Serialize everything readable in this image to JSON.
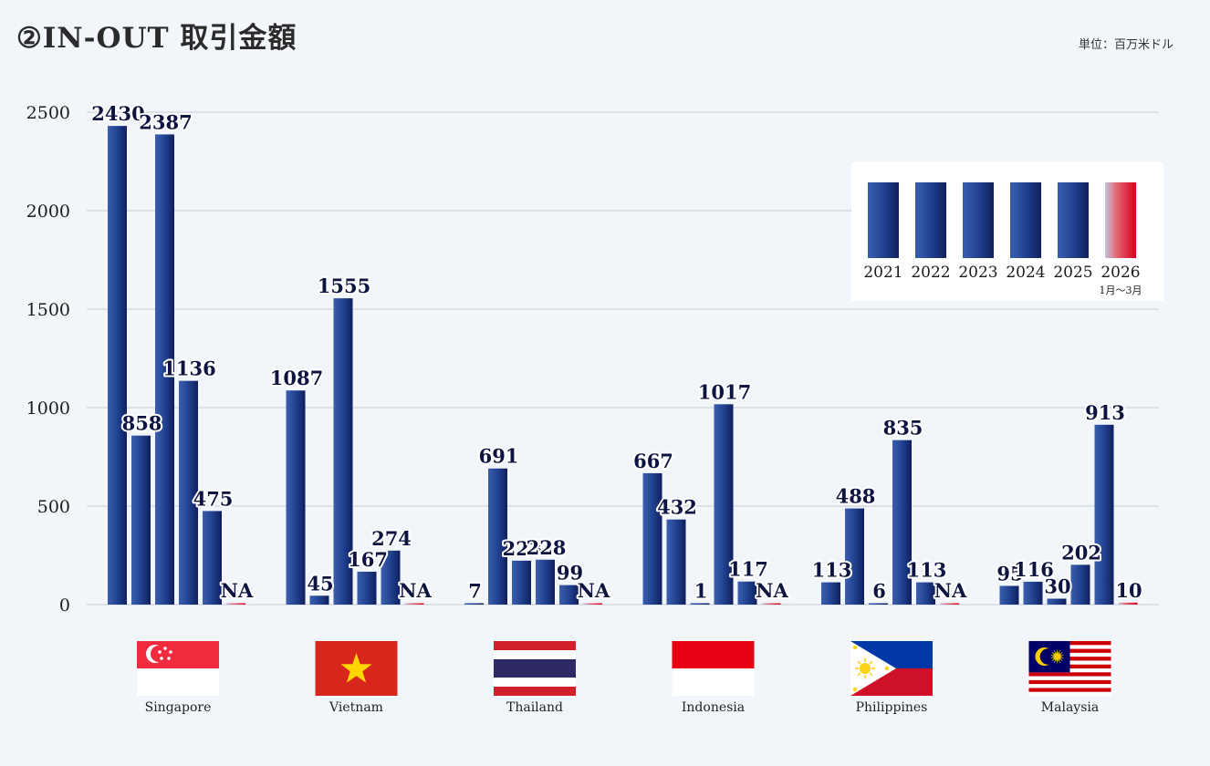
{
  "header": {
    "title": "②IN-OUT 取引金額",
    "unit": "単位：百万米ドル"
  },
  "chart_data": {
    "type": "bar",
    "title": "②IN-OUT 取引金額",
    "unit": "単位：百万米ドル",
    "ylim": [
      0,
      2500
    ],
    "yticks": [
      0,
      500,
      1000,
      1500,
      2000,
      2500
    ],
    "grid": true,
    "legend_position": "top-right",
    "categories": [
      "Singapore",
      "Vietnam",
      "Thailand",
      "Indonesia",
      "Philippines",
      "Malaysia"
    ],
    "series": [
      {
        "name": "2021",
        "values": [
          2430,
          1087,
          7,
          667,
          113,
          95
        ],
        "labels": [
          "2430",
          "1087",
          "7",
          "667",
          "113",
          "95"
        ]
      },
      {
        "name": "2022",
        "values": [
          858,
          45,
          691,
          432,
          488,
          116
        ],
        "labels": [
          "858",
          "45",
          "691",
          "432",
          "488",
          "116"
        ]
      },
      {
        "name": "2023",
        "values": [
          2387,
          1555,
          223,
          1,
          6,
          30
        ],
        "labels": [
          "2387",
          "1555",
          "223",
          "1",
          "6",
          "30"
        ]
      },
      {
        "name": "2024",
        "values": [
          1136,
          167,
          228,
          1017,
          835,
          202
        ],
        "labels": [
          "1136",
          "167",
          "228",
          "1017",
          "835",
          "202"
        ]
      },
      {
        "name": "2025",
        "values": [
          475,
          274,
          99,
          117,
          113,
          913
        ],
        "labels": [
          "475",
          "274",
          "99",
          "117",
          "113",
          "913"
        ]
      },
      {
        "name": "2026",
        "note": "1月〜3月",
        "values": [
          null,
          null,
          null,
          null,
          null,
          10
        ],
        "labels": [
          "NA",
          "NA",
          "NA",
          "NA",
          "NA",
          "10"
        ]
      }
    ]
  },
  "colors": {
    "bar_dark": "#0f1f5c",
    "bar_mid": "#1f3f8c",
    "bar_light": "#3a5fb0",
    "partial_dark": "#d9001b",
    "partial_light": "#c0c8de",
    "grid": "#c8ccd4",
    "background": "#f2f5fa"
  },
  "flags": [
    {
      "country": "Singapore",
      "icon": "singapore-flag-icon"
    },
    {
      "country": "Vietnam",
      "icon": "vietnam-flag-icon"
    },
    {
      "country": "Thailand",
      "icon": "thailand-flag-icon"
    },
    {
      "country": "Indonesia",
      "icon": "indonesia-flag-icon"
    },
    {
      "country": "Philippines",
      "icon": "philippines-flag-icon"
    },
    {
      "country": "Malaysia",
      "icon": "malaysia-flag-icon"
    }
  ]
}
